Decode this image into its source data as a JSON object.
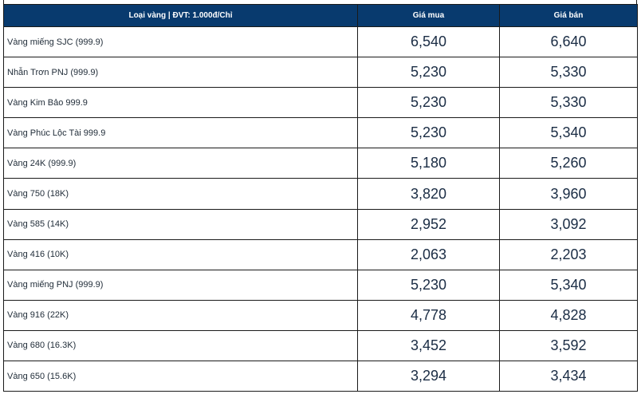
{
  "table": {
    "headers": {
      "type": "Loại vàng | ĐVT: 1.000đ/Chỉ",
      "buy": "Giá mua",
      "sell": "Giá bán"
    },
    "rows": [
      {
        "name": "Vàng miếng SJC (999.9)",
        "buy": "6,540",
        "sell": "6,640"
      },
      {
        "name": "Nhẫn Trơn PNJ (999.9)",
        "buy": "5,230",
        "sell": "5,330"
      },
      {
        "name": "Vàng Kim Bảo 999.9",
        "buy": "5,230",
        "sell": "5,330"
      },
      {
        "name": "Vàng Phúc Lộc Tài 999.9",
        "buy": "5,230",
        "sell": "5,340"
      },
      {
        "name": "Vàng 24K (999.9)",
        "buy": "5,180",
        "sell": "5,260"
      },
      {
        "name": "Vàng 750 (18K)",
        "buy": "3,820",
        "sell": "3,960"
      },
      {
        "name": "Vàng 585 (14K)",
        "buy": "2,952",
        "sell": "3,092"
      },
      {
        "name": "Vàng 416 (10K)",
        "buy": "2,063",
        "sell": "2,203"
      },
      {
        "name": "Vàng miếng PNJ (999.9)",
        "buy": "5,230",
        "sell": "5,340"
      },
      {
        "name": "Vàng 916 (22K)",
        "buy": "4,778",
        "sell": "4,828"
      },
      {
        "name": "Vàng 680 (16.3K)",
        "buy": "3,452",
        "sell": "3,592"
      },
      {
        "name": "Vàng 650 (15.6K)",
        "buy": "3,294",
        "sell": "3,434"
      }
    ]
  },
  "colors": {
    "header_bg": "#083a6e",
    "header_text": "#ffffff",
    "border": "#1a1a1a",
    "value_text": "#1a2c44"
  }
}
